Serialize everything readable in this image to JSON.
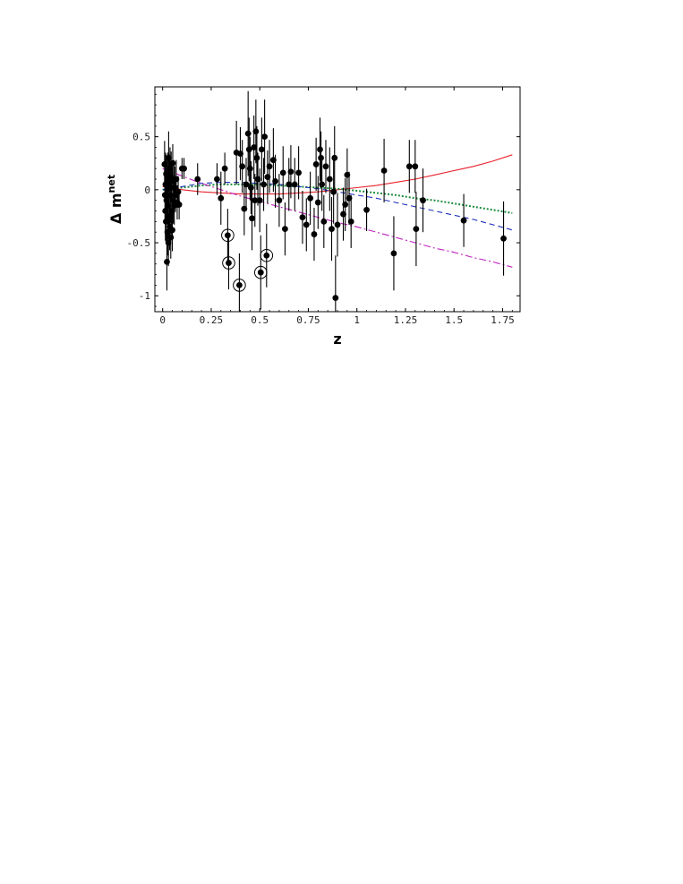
{
  "chart_data": {
    "type": "scatter",
    "xlabel": "z",
    "ylabel_base": "Δ m",
    "ylabel_sup": "net",
    "xlim": [
      -0.04,
      1.84
    ],
    "ylim": [
      -1.15,
      0.97
    ],
    "x_ticks": [
      0,
      0.25,
      0.5,
      0.75,
      1,
      1.25,
      1.5,
      1.75
    ],
    "x_tick_labels": [
      "0",
      "0.25",
      "0.5",
      "0.75",
      "1",
      "1.25",
      "1.5",
      "1.75"
    ],
    "y_ticks": [
      -1,
      -0.5,
      0,
      0.5
    ],
    "y_tick_labels": [
      "-1",
      "-0.5",
      "0",
      "0.5"
    ],
    "grid": false,
    "legend": false,
    "points": [
      {
        "x": 0.01,
        "y": 0.24,
        "err": 0.22
      },
      {
        "x": 0.012,
        "y": -0.05,
        "err": 0.25
      },
      {
        "x": 0.014,
        "y": -0.2,
        "err": 0.28
      },
      {
        "x": 0.015,
        "y": 0.05,
        "err": 0.3
      },
      {
        "x": 0.017,
        "y": -0.3,
        "err": 0.2
      },
      {
        "x": 0.018,
        "y": 0.15,
        "err": 0.18
      },
      {
        "x": 0.02,
        "y": -0.1,
        "err": 0.22
      },
      {
        "x": 0.022,
        "y": -0.68,
        "err": 0.27
      },
      {
        "x": 0.023,
        "y": 0.0,
        "err": 0.3
      },
      {
        "x": 0.025,
        "y": -0.4,
        "err": 0.22
      },
      {
        "x": 0.026,
        "y": 0.1,
        "err": 0.25
      },
      {
        "x": 0.028,
        "y": -0.15,
        "err": 0.28
      },
      {
        "x": 0.03,
        "y": -0.5,
        "err": 0.22
      },
      {
        "x": 0.031,
        "y": 0.3,
        "err": 0.25
      },
      {
        "x": 0.033,
        "y": -0.25,
        "err": 0.22
      },
      {
        "x": 0.035,
        "y": 0.05,
        "err": 0.28
      },
      {
        "x": 0.036,
        "y": -0.35,
        "err": 0.22
      },
      {
        "x": 0.038,
        "y": 0.2,
        "err": 0.2
      },
      {
        "x": 0.04,
        "y": -0.05,
        "err": 0.26
      },
      {
        "x": 0.042,
        "y": -0.45,
        "err": 0.2
      },
      {
        "x": 0.044,
        "y": 0.12,
        "err": 0.24
      },
      {
        "x": 0.046,
        "y": -0.2,
        "err": 0.22
      },
      {
        "x": 0.048,
        "y": 0.02,
        "err": 0.2
      },
      {
        "x": 0.05,
        "y": -0.38,
        "err": 0.2
      },
      {
        "x": 0.052,
        "y": 0.25,
        "err": 0.18
      },
      {
        "x": 0.055,
        "y": -0.1,
        "err": 0.22
      },
      {
        "x": 0.058,
        "y": 0.08,
        "err": 0.2
      },
      {
        "x": 0.06,
        "y": -0.15,
        "err": 0.18
      },
      {
        "x": 0.063,
        "y": 0.02,
        "err": 0.2
      },
      {
        "x": 0.066,
        "y": -0.05,
        "err": 0.16
      },
      {
        "x": 0.07,
        "y": 0.1,
        "err": 0.18
      },
      {
        "x": 0.075,
        "y": -0.12,
        "err": 0.16
      },
      {
        "x": 0.08,
        "y": -0.02,
        "err": 0.15
      },
      {
        "x": 0.085,
        "y": -0.14,
        "err": 0.14
      },
      {
        "x": 0.1,
        "y": 0.2,
        "err": 0.1
      },
      {
        "x": 0.11,
        "y": 0.2,
        "err": 0.1
      },
      {
        "x": 0.18,
        "y": 0.1,
        "err": 0.15
      },
      {
        "x": 0.28,
        "y": 0.1,
        "err": 0.15
      },
      {
        "x": 0.3,
        "y": -0.08,
        "err": 0.25
      },
      {
        "x": 0.32,
        "y": 0.2,
        "err": 0.15
      },
      {
        "x": 0.335,
        "y": -0.43,
        "err": 0.25,
        "circled": true
      },
      {
        "x": 0.34,
        "y": -0.69,
        "err": 0.25,
        "circled": true
      },
      {
        "x": 0.38,
        "y": 0.35,
        "err": 0.3
      },
      {
        "x": 0.395,
        "y": -0.9,
        "err": 0.3,
        "circled": true
      },
      {
        "x": 0.4,
        "y": 0.34,
        "err": 0.25
      },
      {
        "x": 0.41,
        "y": 0.22,
        "err": 0.25
      },
      {
        "x": 0.42,
        "y": -0.18,
        "err": 0.25
      },
      {
        "x": 0.43,
        "y": 0.05,
        "err": 0.25
      },
      {
        "x": 0.44,
        "y": 0.53,
        "err": 0.4
      },
      {
        "x": 0.445,
        "y": 0.38,
        "err": 0.3
      },
      {
        "x": 0.45,
        "y": 0.2,
        "err": 0.3
      },
      {
        "x": 0.455,
        "y": 0.02,
        "err": 0.25
      },
      {
        "x": 0.46,
        "y": -0.27,
        "err": 0.3
      },
      {
        "x": 0.47,
        "y": 0.4,
        "err": 0.3
      },
      {
        "x": 0.475,
        "y": -0.1,
        "err": 0.25
      },
      {
        "x": 0.48,
        "y": 0.55,
        "err": 0.3
      },
      {
        "x": 0.485,
        "y": 0.3,
        "err": 0.3
      },
      {
        "x": 0.49,
        "y": 0.1,
        "err": 0.25
      },
      {
        "x": 0.5,
        "y": -0.1,
        "err": 0.3
      },
      {
        "x": 0.505,
        "y": -0.78,
        "err": 0.35,
        "circled": true
      },
      {
        "x": 0.51,
        "y": 0.38,
        "err": 0.3
      },
      {
        "x": 0.52,
        "y": 0.05,
        "err": 0.25
      },
      {
        "x": 0.525,
        "y": 0.5,
        "err": 0.35
      },
      {
        "x": 0.535,
        "y": -0.62,
        "err": 0.3,
        "circled": true
      },
      {
        "x": 0.54,
        "y": 0.12,
        "err": 0.25
      },
      {
        "x": 0.55,
        "y": 0.22,
        "err": 0.25
      },
      {
        "x": 0.57,
        "y": 0.28,
        "err": 0.3
      },
      {
        "x": 0.58,
        "y": 0.08,
        "err": 0.25
      },
      {
        "x": 0.6,
        "y": -0.1,
        "err": 0.25
      },
      {
        "x": 0.62,
        "y": 0.16,
        "err": 0.25
      },
      {
        "x": 0.63,
        "y": -0.37,
        "err": 0.25
      },
      {
        "x": 0.65,
        "y": 0.05,
        "err": 0.25
      },
      {
        "x": 0.66,
        "y": 0.17,
        "err": 0.25
      },
      {
        "x": 0.68,
        "y": 0.05,
        "err": 0.25
      },
      {
        "x": 0.7,
        "y": 0.16,
        "err": 0.25
      },
      {
        "x": 0.72,
        "y": -0.26,
        "err": 0.25
      },
      {
        "x": 0.74,
        "y": -0.33,
        "err": 0.25
      },
      {
        "x": 0.76,
        "y": -0.08,
        "err": 0.25
      },
      {
        "x": 0.78,
        "y": -0.42,
        "err": 0.25
      },
      {
        "x": 0.79,
        "y": 0.24,
        "err": 0.25
      },
      {
        "x": 0.8,
        "y": -0.12,
        "err": 0.25
      },
      {
        "x": 0.81,
        "y": 0.38,
        "err": 0.3
      },
      {
        "x": 0.815,
        "y": 0.3,
        "err": 0.25
      },
      {
        "x": 0.82,
        "y": 0.05,
        "err": 0.25
      },
      {
        "x": 0.83,
        "y": -0.3,
        "err": 0.25
      },
      {
        "x": 0.84,
        "y": 0.22,
        "err": 0.25
      },
      {
        "x": 0.86,
        "y": 0.1,
        "err": 0.3
      },
      {
        "x": 0.87,
        "y": -0.37,
        "err": 0.3
      },
      {
        "x": 0.88,
        "y": -0.02,
        "err": 0.3
      },
      {
        "x": 0.885,
        "y": 0.3,
        "err": 0.3
      },
      {
        "x": 0.89,
        "y": -1.02,
        "err": 0.4
      },
      {
        "x": 0.9,
        "y": -0.33,
        "err": 0.3
      },
      {
        "x": 0.93,
        "y": -0.23,
        "err": 0.25
      },
      {
        "x": 0.94,
        "y": -0.14,
        "err": 0.25
      },
      {
        "x": 0.95,
        "y": 0.14,
        "err": 0.25
      },
      {
        "x": 0.96,
        "y": -0.08,
        "err": 0.25
      },
      {
        "x": 0.97,
        "y": -0.3,
        "err": 0.25
      },
      {
        "x": 1.05,
        "y": -0.19,
        "err": 0.2
      },
      {
        "x": 1.14,
        "y": 0.18,
        "err": 0.3
      },
      {
        "x": 1.19,
        "y": -0.6,
        "err": 0.35
      },
      {
        "x": 1.27,
        "y": 0.22,
        "err": 0.25
      },
      {
        "x": 1.3,
        "y": 0.22,
        "err": 0.25
      },
      {
        "x": 1.305,
        "y": -0.37,
        "err": 0.35
      },
      {
        "x": 1.34,
        "y": -0.1,
        "err": 0.3
      },
      {
        "x": 1.55,
        "y": -0.29,
        "err": 0.25
      },
      {
        "x": 1.755,
        "y": -0.46,
        "err": 0.35
      }
    ],
    "curves": [
      {
        "style": "solid",
        "color": "#e8202a",
        "x": [
          0.0,
          0.1,
          0.2,
          0.3,
          0.4,
          0.5,
          0.6,
          0.7,
          0.8,
          0.9,
          1.0,
          1.1,
          1.2,
          1.3,
          1.4,
          1.5,
          1.6,
          1.7,
          1.8
        ],
        "y": [
          0.03,
          0.0,
          -0.02,
          -0.03,
          -0.04,
          -0.04,
          -0.04,
          -0.03,
          -0.02,
          0.0,
          0.02,
          0.04,
          0.07,
          0.1,
          0.14,
          0.18,
          0.22,
          0.27,
          0.33
        ]
      },
      {
        "style": "dotted",
        "color": "#1a8a3a",
        "x": [
          0.0,
          0.1,
          0.2,
          0.3,
          0.4,
          0.5,
          0.6,
          0.7,
          0.8,
          0.9,
          1.0,
          1.1,
          1.2,
          1.3,
          1.4,
          1.5,
          1.6,
          1.7,
          1.8
        ],
        "y": [
          0.0,
          0.02,
          0.04,
          0.05,
          0.05,
          0.05,
          0.04,
          0.03,
          0.02,
          0.01,
          -0.01,
          -0.03,
          -0.05,
          -0.08,
          -0.1,
          -0.13,
          -0.16,
          -0.19,
          -0.22
        ]
      },
      {
        "style": "dashed",
        "color": "#2030c0",
        "x": [
          0.0,
          0.1,
          0.2,
          0.3,
          0.4,
          0.5,
          0.6,
          0.7,
          0.8,
          0.9,
          1.0,
          1.1,
          1.2,
          1.3,
          1.4,
          1.5,
          1.6,
          1.7,
          1.8
        ],
        "y": [
          0.0,
          0.03,
          0.06,
          0.07,
          0.07,
          0.06,
          0.05,
          0.03,
          0.01,
          -0.02,
          -0.05,
          -0.08,
          -0.12,
          -0.16,
          -0.2,
          -0.24,
          -0.28,
          -0.33,
          -0.38
        ]
      },
      {
        "style": "dashdot",
        "color": "#c020c0",
        "x": [
          0.0,
          0.1,
          0.2,
          0.3,
          0.4,
          0.5,
          0.6,
          0.7,
          0.8,
          0.9,
          1.0,
          1.1,
          1.2,
          1.3,
          1.4,
          1.5,
          1.6,
          1.7,
          1.8
        ],
        "y": [
          0.2,
          0.13,
          0.06,
          0.0,
          -0.06,
          -0.11,
          -0.16,
          -0.21,
          -0.26,
          -0.31,
          -0.35,
          -0.4,
          -0.45,
          -0.5,
          -0.55,
          -0.59,
          -0.64,
          -0.68,
          -0.73
        ]
      }
    ]
  }
}
